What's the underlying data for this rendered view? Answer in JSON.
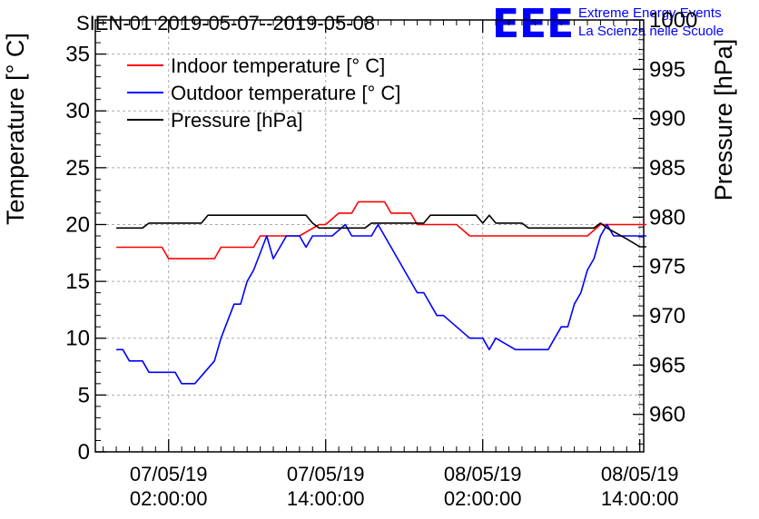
{
  "header": {
    "title": "SIEN-01 2019-05-07--2019-05-08"
  },
  "logo": {
    "mark": "EEE",
    "line1": "Extreme Energy Events",
    "line2": "La Scienza nelle Scuole",
    "color": "#0000ff"
  },
  "chart_data": {
    "type": "line",
    "title": "SIEN-01 2019-05-07--2019-05-08",
    "x_unit": "hours since 2019-05-07 00:00:00",
    "xlim": [
      -3.6,
      38.3
    ],
    "x_ticks": [
      {
        "x": 2,
        "date": "07/05/19",
        "time": "02:00:00"
      },
      {
        "x": 14,
        "date": "07/05/19",
        "time": "14:00:00"
      },
      {
        "x": 26,
        "date": "08/05/19",
        "time": "02:00:00"
      },
      {
        "x": 38,
        "date": "08/05/19",
        "time": "14:00:00"
      }
    ],
    "grid": true,
    "legend_position": "top-left",
    "left_axis": {
      "label": "Temperature [° C]",
      "ylim": [
        0,
        38
      ],
      "ticks": [
        0,
        5,
        10,
        15,
        20,
        25,
        30,
        35
      ]
    },
    "right_axis": {
      "label": "Pressure [hPa]",
      "ylim": [
        956.2,
        1000
      ],
      "ticks": [
        960,
        965,
        970,
        975,
        980,
        985,
        990,
        995,
        1000
      ]
    },
    "series": [
      {
        "name": "Indoor temperature [° C]",
        "axis": "left",
        "color": "#ff0000",
        "x": [
          -2.0,
          1.5,
          2.0,
          5.5,
          6.0,
          8.5,
          9.0,
          12.0,
          13.5,
          14.0,
          15.0,
          16.0,
          16.5,
          17.5,
          18.5,
          19.0,
          19.5,
          20.5,
          21.0,
          21.5,
          24.0,
          25.0,
          27.5,
          28.0,
          34.0,
          35.0,
          38.5
        ],
        "y": [
          18,
          18,
          17,
          17,
          18,
          18,
          19,
          19,
          20,
          20,
          21,
          21,
          22,
          22,
          22,
          21,
          21,
          21,
          20,
          20,
          20,
          19,
          19,
          19,
          19,
          20,
          20
        ]
      },
      {
        "name": "Outdoor temperature [° C]",
        "axis": "left",
        "color": "#0000ff",
        "x": [
          -2.0,
          -1.5,
          -1.0,
          0.0,
          0.5,
          2.5,
          3.0,
          4.0,
          5.5,
          6.0,
          7.0,
          7.5,
          8.0,
          8.5,
          9.5,
          10.0,
          11.0,
          11.5,
          12.0,
          12.5,
          13.0,
          13.5,
          14.0,
          14.5,
          15.5,
          16.0,
          16.5,
          17.5,
          18.0,
          18.5,
          19.0,
          20.0,
          20.5,
          21.0,
          21.5,
          22.5,
          23.0,
          24.0,
          25.0,
          26.0,
          26.5,
          27.0,
          28.5,
          29.0,
          30.5,
          31.0,
          32.0,
          32.5,
          33.0,
          33.5,
          34.0,
          34.5,
          35.0,
          35.5,
          36.0,
          38.5
        ],
        "y": [
          9,
          9,
          8,
          8,
          7,
          7,
          6,
          6,
          8,
          10,
          13,
          13,
          15,
          16,
          19,
          17,
          19,
          19,
          19,
          18,
          19,
          19,
          19,
          19,
          20,
          19,
          19,
          19,
          20,
          19,
          18,
          16,
          15,
          14,
          14,
          12,
          12,
          11,
          10,
          10,
          9,
          10,
          9,
          9,
          9,
          9,
          11,
          11,
          13,
          14,
          16,
          17,
          19,
          20,
          19,
          19
        ]
      },
      {
        "name": "Pressure [hPa]",
        "axis": "right",
        "color": "#000000",
        "x": [
          -2.0,
          0.0,
          0.5,
          4.5,
          5.0,
          12.5,
          13.0,
          13.5,
          16.5,
          17.0,
          17.5,
          19.0,
          19.5,
          21.5,
          22.0,
          25.5,
          26.0,
          26.5,
          27.0,
          29.0,
          29.5,
          34.5,
          35.0,
          35.5,
          37.0,
          38.0,
          38.5
        ],
        "y": [
          978.9,
          978.9,
          979.4,
          979.4,
          980.2,
          980.2,
          979.4,
          978.9,
          978.9,
          978.9,
          979.4,
          979.4,
          979.4,
          979.4,
          980.2,
          980.2,
          979.4,
          980.2,
          979.4,
          979.4,
          978.9,
          978.9,
          979.4,
          978.9,
          977.8,
          977.0,
          977.0
        ]
      }
    ]
  }
}
